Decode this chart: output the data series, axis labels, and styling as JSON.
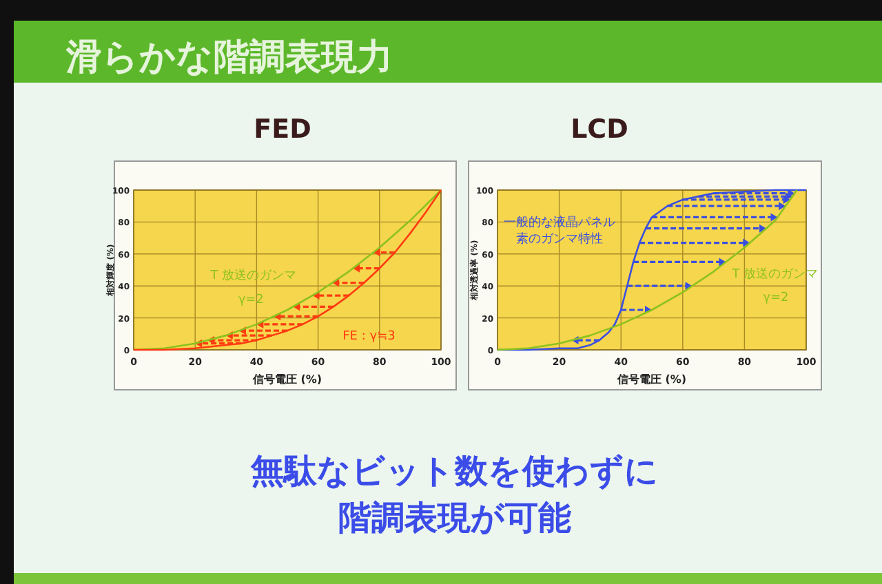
{
  "chart_data": [
    {
      "type": "other",
      "title": "滑らかな階調表現力",
      "annotations": [
        "無駄なビット数を使わずに",
        "階調表現が可能"
      ]
    },
    {
      "type": "line",
      "title": "FED",
      "xlabel": "信号電圧 (%)",
      "ylabel": "相対輝度 (%)",
      "xlim": [
        0,
        100
      ],
      "ylim": [
        0,
        100
      ],
      "xticks": [
        0,
        20,
        40,
        60,
        80,
        100
      ],
      "yticks": [
        0,
        20,
        40,
        60,
        80,
        100
      ],
      "grid": true,
      "x": [
        0,
        10,
        20,
        30,
        40,
        50,
        60,
        70,
        80,
        90,
        100
      ],
      "series": [
        {
          "color": "#8cc21e",
          "values": [
            0,
            1,
            4,
            9,
            16,
            25,
            36,
            49,
            64,
            81,
            100
          ]
        },
        {
          "color": "#ff3b12",
          "x": [
            0,
            10,
            20,
            30,
            35,
            40,
            45,
            50,
            55,
            60,
            65,
            70,
            75,
            80,
            85,
            90,
            95,
            100
          ],
          "values": [
            0,
            0,
            1,
            3,
            4,
            6,
            9,
            12,
            16,
            21,
            27,
            34,
            42,
            51,
            61,
            73,
            86,
            100
          ]
        }
      ],
      "annotations": [
        "T 放送のガンマ",
        "γ=2",
        "FE : γ≒3"
      ]
    },
    {
      "type": "line",
      "title": "LCD",
      "xlabel": "信号電圧 (%)",
      "ylabel": "相対透過率 (%)",
      "xlim": [
        0,
        100
      ],
      "ylim": [
        0,
        100
      ],
      "xticks": [
        0,
        20,
        40,
        60,
        80,
        100
      ],
      "yticks": [
        0,
        20,
        40,
        60,
        80,
        100
      ],
      "grid": true,
      "series": [
        {
          "color": "#3a4fe0",
          "x": [
            0,
            10,
            20,
            26,
            30,
            33,
            36,
            38,
            40,
            42,
            44,
            46,
            48,
            50,
            55,
            60,
            65,
            70,
            80,
            90,
            100
          ],
          "values": [
            0,
            0,
            1,
            1,
            3,
            6,
            11,
            16,
            25,
            40,
            55,
            67,
            76,
            83,
            90,
            94,
            96,
            98,
            99,
            100,
            100
          ]
        },
        {
          "color": "#8cc21e",
          "x": [
            0,
            10,
            20,
            30,
            40,
            50,
            60,
            70,
            80,
            90,
            97
          ],
          "values": [
            0,
            1,
            4,
            9,
            16,
            25,
            36,
            49,
            64,
            81,
            100
          ]
        }
      ],
      "annotations": [
        "一般的な液晶パネル",
        "素のガンマ特性",
        "T 放送のガンマ",
        "γ=2"
      ]
    }
  ]
}
